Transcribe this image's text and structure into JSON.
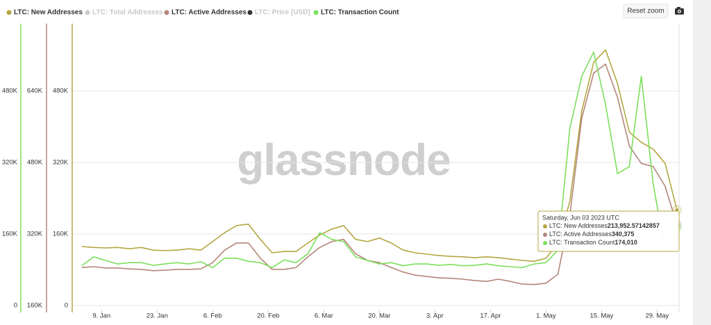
{
  "chart_data": {
    "type": "line",
    "x": [
      "2023-01-04",
      "2023-01-07",
      "2023-01-10",
      "2023-01-13",
      "2023-01-16",
      "2023-01-19",
      "2023-01-22",
      "2023-01-25",
      "2023-01-28",
      "2023-01-31",
      "2023-02-03",
      "2023-02-06",
      "2023-02-09",
      "2023-02-12",
      "2023-02-15",
      "2023-02-18",
      "2023-02-21",
      "2023-02-24",
      "2023-02-27",
      "2023-03-02",
      "2023-03-05",
      "2023-03-08",
      "2023-03-11",
      "2023-03-14",
      "2023-03-17",
      "2023-03-20",
      "2023-03-23",
      "2023-03-26",
      "2023-03-29",
      "2023-04-01",
      "2023-04-04",
      "2023-04-07",
      "2023-04-10",
      "2023-04-13",
      "2023-04-16",
      "2023-04-19",
      "2023-04-22",
      "2023-04-25",
      "2023-04-28",
      "2023-05-01",
      "2023-05-04",
      "2023-05-07",
      "2023-05-10",
      "2023-05-13",
      "2023-05-16",
      "2023-05-19",
      "2023-05-22",
      "2023-05-25",
      "2023-05-28",
      "2023-05-31",
      "2023-06-03"
    ],
    "xlim": [
      "2023-01-03",
      "2023-06-03"
    ],
    "xticks": [
      {
        "value": "2023-01-09",
        "label": "9. Jan"
      },
      {
        "value": "2023-01-23",
        "label": "23. Jan"
      },
      {
        "value": "2023-02-06",
        "label": "6. Feb"
      },
      {
        "value": "2023-02-20",
        "label": "20. Feb"
      },
      {
        "value": "2023-03-06",
        "label": "6. Mar"
      },
      {
        "value": "2023-03-20",
        "label": "20. Mar"
      },
      {
        "value": "2023-04-03",
        "label": "3. Apr"
      },
      {
        "value": "2023-04-17",
        "label": "17. Apr"
      },
      {
        "value": "2023-05-01",
        "label": "1. May"
      },
      {
        "value": "2023-05-15",
        "label": "15. May"
      },
      {
        "value": "2023-05-29",
        "label": "29. May"
      }
    ],
    "ylim": [
      0,
      640000
    ],
    "yticks": [
      0,
      {
        "value": 160000,
        "label": "160K"
      },
      {
        "value": 320000,
        "label": "320K"
      },
      {
        "value": 480000,
        "label": "480K"
      }
    ],
    "y2lim": [
      160000,
      800000
    ],
    "y2ticks": [
      {
        "value": 160000,
        "label": "160K"
      },
      {
        "value": 320000,
        "label": "320K"
      },
      {
        "value": 480000,
        "label": "480K"
      },
      {
        "value": 640000,
        "label": "640K"
      }
    ],
    "y3lim": [
      0,
      640000
    ],
    "y3ticks": [
      0,
      {
        "value": 160000,
        "label": "160K"
      },
      {
        "value": 320000,
        "label": "320K"
      },
      {
        "value": 480000,
        "label": "480K"
      }
    ],
    "grid": true,
    "series": [
      {
        "name": "LTC: New Addresses",
        "color": "#b5a642",
        "axis": "y",
        "values": [
          132000,
          130000,
          129000,
          130000,
          127000,
          130000,
          124000,
          123000,
          124000,
          127000,
          124000,
          143000,
          163000,
          179000,
          182000,
          148000,
          118000,
          121000,
          121000,
          140000,
          158000,
          171000,
          179000,
          148000,
          143000,
          151000,
          140000,
          124000,
          118000,
          115000,
          112000,
          110000,
          109000,
          107000,
          109000,
          107000,
          104000,
          101000,
          99000,
          106000,
          140000,
          233000,
          435000,
          544000,
          572000,
          497000,
          388000,
          365000,
          350000,
          318000,
          213952.57142857
        ]
      },
      {
        "name": "LTC: Active Addresses",
        "color": "#b5857a",
        "axis": "y2",
        "values": [
          245000,
          247000,
          244000,
          244000,
          242000,
          241000,
          238000,
          239000,
          241000,
          241000,
          242000,
          256000,
          284000,
          300000,
          300000,
          266000,
          241000,
          241000,
          245000,
          269000,
          290000,
          303000,
          308000,
          276000,
          261000,
          256000,
          245000,
          235000,
          228000,
          225000,
          222000,
          221000,
          219000,
          216000,
          214000,
          219000,
          214000,
          208000,
          207000,
          210000,
          230000,
          362000,
          579000,
          680000,
          700000,
          626000,
          517000,
          478000,
          471000,
          427000,
          340375
        ]
      },
      {
        "name": "LTC: Transaction Count",
        "color": "#7be05c",
        "axis": "y3",
        "values": [
          89000,
          109000,
          101000,
          93000,
          96000,
          96000,
          90000,
          93000,
          96000,
          93000,
          98000,
          85000,
          106000,
          106000,
          99000,
          96000,
          85000,
          102000,
          96000,
          116000,
          163000,
          148000,
          143000,
          109000,
          101000,
          93000,
          96000,
          89000,
          93000,
          93000,
          90000,
          92000,
          89000,
          90000,
          93000,
          89000,
          87000,
          85000,
          93000,
          96000,
          124000,
          396000,
          513000,
          567000,
          450000,
          295000,
          311000,
          513000,
          272000,
          124000,
          174010
        ]
      }
    ],
    "hidden_series": [
      {
        "name": "LTC: Total Addresses",
        "color": "#cccccc"
      },
      {
        "name": "LTC: Price [USD]",
        "color": "#333333"
      }
    ],
    "tooltip": {
      "title": "Saturday, Jun 03 2023 UTC",
      "value_labels": [
        "213,952.57142857",
        "340,375",
        "174,010"
      ]
    },
    "watermark": "glassnode",
    "controls": {
      "reset_zoom": "Reset zoom"
    }
  }
}
